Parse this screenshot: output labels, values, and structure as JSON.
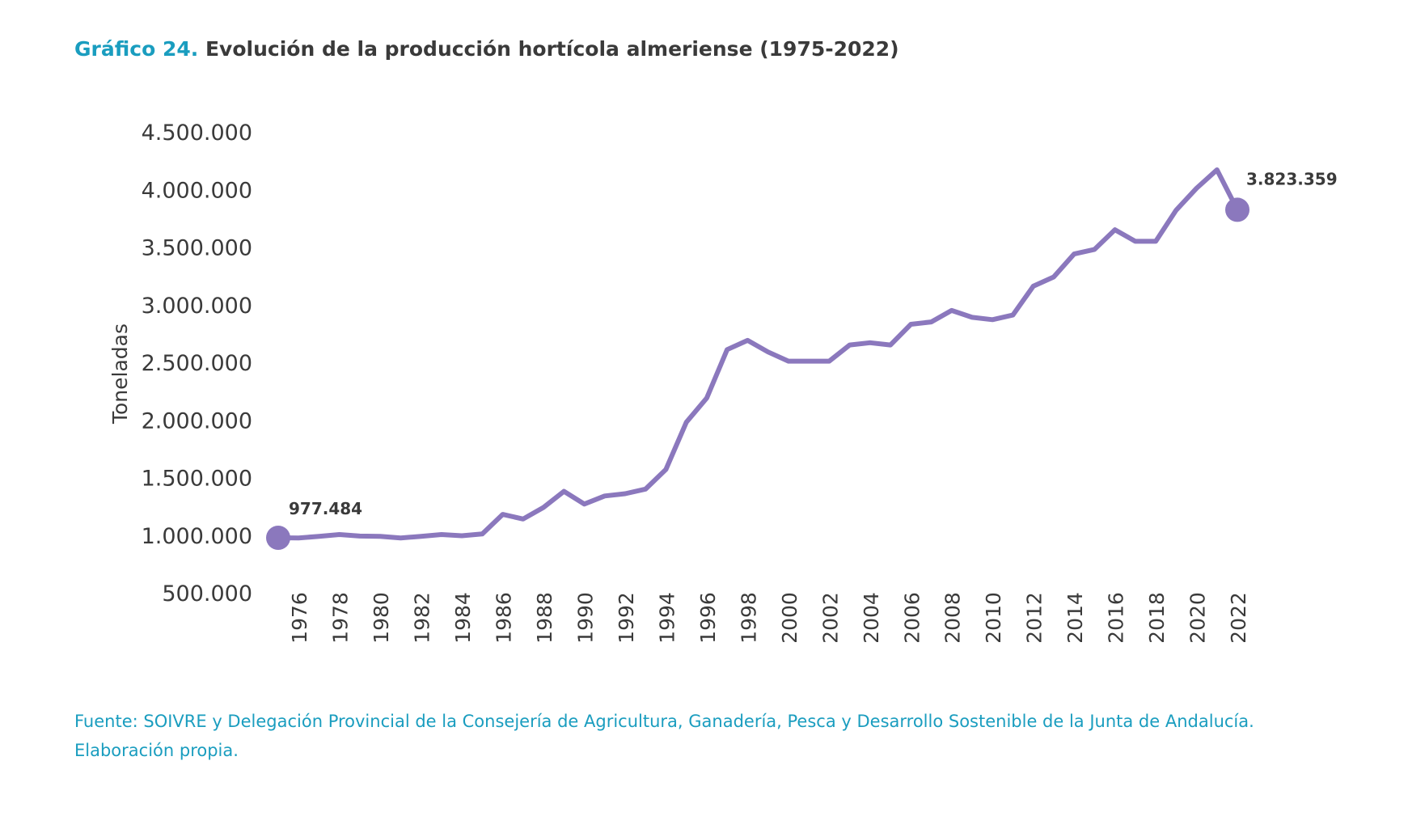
{
  "title": {
    "prefix": "Gráfico 24.",
    "text": "Evolución de la producción hortícola almeriense (1975-2022)"
  },
  "source": {
    "line1": "Fuente: SOIVRE y Delegación Provincial de la Consejería de Agricultura, Ganadería, Pesca y Desarrollo Sostenible de la Junta de Andalucía.",
    "line2": "Elaboración propia."
  },
  "colors": {
    "accent": "#1a9dbf",
    "line": "#8b78bd",
    "text": "#3a3a3a"
  },
  "chart_data": {
    "type": "line",
    "title": "Evolución de la producción hortícola almeriense (1975-2022)",
    "xlabel": "",
    "ylabel": "Toneladas",
    "ylim": [
      500000,
      4500000
    ],
    "yticks": [
      500000,
      1000000,
      1500000,
      2000000,
      2500000,
      3000000,
      3500000,
      4000000,
      4500000
    ],
    "ytick_labels": [
      "500.000",
      "1.000.000",
      "1.500.000",
      "2.000.000",
      "2.500.000",
      "3.000.000",
      "3.500.000",
      "4.000.000",
      "4.500.000"
    ],
    "xtick_labels": [
      "1976",
      "1978",
      "1980",
      "1982",
      "1984",
      "1986",
      "1988",
      "1990",
      "1992",
      "1994",
      "1996",
      "1998",
      "2000",
      "2002",
      "2004",
      "2006",
      "2008",
      "2010",
      "2012",
      "2014",
      "2016",
      "2018",
      "2020",
      "2022"
    ],
    "grid": false,
    "series": [
      {
        "name": "Producción hortícola",
        "x": [
          1975,
          1976,
          1977,
          1978,
          1979,
          1980,
          1981,
          1982,
          1983,
          1984,
          1985,
          1986,
          1987,
          1988,
          1989,
          1990,
          1991,
          1992,
          1993,
          1994,
          1995,
          1996,
          1997,
          1998,
          1999,
          2000,
          2001,
          2002,
          2003,
          2004,
          2005,
          2006,
          2007,
          2008,
          2009,
          2010,
          2011,
          2012,
          2013,
          2014,
          2015,
          2016,
          2017,
          2018,
          2019,
          2020,
          2021,
          2022
        ],
        "values": [
          977484,
          975000,
          990000,
          1005000,
          992000,
          990000,
          975000,
          990000,
          1005000,
          995000,
          1010000,
          1180000,
          1140000,
          1240000,
          1380000,
          1270000,
          1340000,
          1360000,
          1400000,
          1570000,
          1980000,
          2190000,
          2610000,
          2690000,
          2590000,
          2510000,
          2510000,
          2510000,
          2650000,
          2670000,
          2650000,
          2830000,
          2850000,
          2950000,
          2890000,
          2870000,
          2910000,
          3160000,
          3240000,
          3440000,
          3480000,
          3650000,
          3550000,
          3550000,
          3820000,
          4010000,
          4170000,
          3823359
        ]
      }
    ],
    "annotations": [
      {
        "year": 1975,
        "label": "977.484"
      },
      {
        "year": 2022,
        "label": "3.823.359"
      }
    ]
  }
}
